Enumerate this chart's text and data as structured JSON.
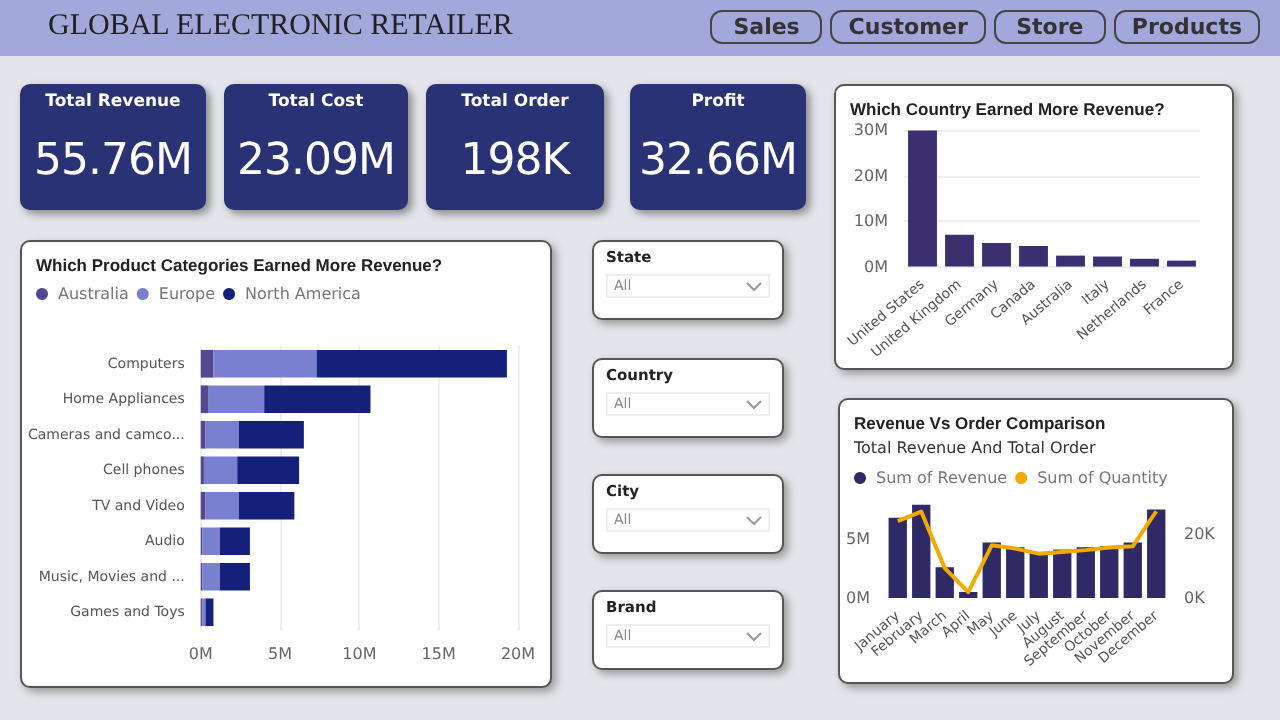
{
  "chart_data": [
    {
      "type": "other",
      "title": "GLOBAL ELECTRONIC RETAILER",
      "annotations": [
        "Sales",
        "Customer",
        "Store",
        "Products"
      ]
    },
    {
      "type": "other",
      "title": "Total Revenue",
      "annotations": [
        "55.76M"
      ]
    },
    {
      "type": "other",
      "title": "Total Cost",
      "annotations": [
        "23.09M"
      ]
    },
    {
      "type": "other",
      "title": "Total Order",
      "annotations": [
        "198K"
      ]
    },
    {
      "type": "other",
      "title": "Profit",
      "annotations": [
        "32.66M"
      ]
    },
    {
      "type": "bar",
      "title": "Which Country Earned More Revenue?",
      "categories": [
        "United States",
        "United Kingdom",
        "Germany",
        "Canada",
        "Australia",
        "Italy",
        "Netherlands",
        "France"
      ],
      "values": [
        29.9,
        7.0,
        5.2,
        4.5,
        2.4,
        2.2,
        1.7,
        1.3
      ],
      "color": "#3b2f70",
      "ylim": [
        0,
        30
      ],
      "yticks": [
        {
          "value": 0,
          "label": "0M"
        },
        {
          "value": 10,
          "label": "10M"
        },
        {
          "value": 20,
          "label": "20M"
        },
        {
          "value": 30,
          "label": "30M"
        }
      ],
      "grid": true
    },
    {
      "type": "bar",
      "title": "Which Product Categories Earned More Revenue?",
      "orientation": "horizontal",
      "stacked": true,
      "legend": "top left",
      "grid": true,
      "categories": [
        "Computers",
        "Home Appliances",
        "Cameras and camco...",
        "Cell phones",
        "TV and Video",
        "Audio",
        "Music, Movies and ...",
        "Games and Toys"
      ],
      "xlim": [
        0,
        20
      ],
      "xticks": [
        {
          "value": 0,
          "label": "0M"
        },
        {
          "value": 5,
          "label": "5M"
        },
        {
          "value": 10,
          "label": "10M"
        },
        {
          "value": 15,
          "label": "15M"
        },
        {
          "value": 20,
          "label": "20M"
        }
      ],
      "series": [
        {
          "name": "Australia",
          "color": "#54478f",
          "values": [
            0.8,
            0.5,
            0.3,
            0.2,
            0.3,
            0.1,
            0.1,
            0.1
          ]
        },
        {
          "name": "Europe",
          "color": "#7a80d0",
          "values": [
            6.5,
            3.5,
            2.1,
            2.1,
            2.1,
            1.1,
            1.1,
            0.2
          ]
        },
        {
          "name": "North America",
          "color": "#15207a",
          "values": [
            12.0,
            6.7,
            4.1,
            3.9,
            3.5,
            1.9,
            1.9,
            0.5
          ]
        }
      ]
    },
    {
      "type": "other",
      "title": "State",
      "annotations": [
        "All"
      ]
    },
    {
      "type": "other",
      "title": "Country",
      "annotations": [
        "All"
      ]
    },
    {
      "type": "other",
      "title": "City",
      "annotations": [
        "All"
      ]
    },
    {
      "type": "other",
      "title": "Brand",
      "annotations": [
        "All"
      ]
    },
    {
      "type": "bar",
      "title": "Revenue Vs Order Comparison",
      "subtitle": "Total Revenue And Total Order",
      "legend": "top left",
      "categories": [
        "January",
        "February",
        "March",
        "April",
        "May",
        "June",
        "July",
        "August",
        "September",
        "October",
        "November",
        "December"
      ],
      "ylim": [
        0,
        8.3
      ],
      "yticks": [
        {
          "value": 0,
          "label": "0M"
        },
        {
          "value": 5,
          "label": "5M"
        }
      ],
      "y2lim": [
        0,
        30.5
      ],
      "y2ticks": [
        {
          "value": 0,
          "label": "0K"
        },
        {
          "value": 20,
          "label": "20K"
        }
      ],
      "series": [
        {
          "name": "Sum of Revenue",
          "color": "#2f2a66",
          "values": [
            6.8,
            7.9,
            2.6,
            0.5,
            4.7,
            4.3,
            3.8,
            4.1,
            4.3,
            4.4,
            4.7,
            7.5
          ]
        },
        {
          "name": "Sum of Quantity",
          "type": "line",
          "axis": "y2",
          "color": "#f2a900",
          "values": [
            23.9,
            26.9,
            9.3,
            1.8,
            16.4,
            15.4,
            13.8,
            14.3,
            14.9,
            15.7,
            16.1,
            27.0
          ]
        }
      ]
    }
  ]
}
